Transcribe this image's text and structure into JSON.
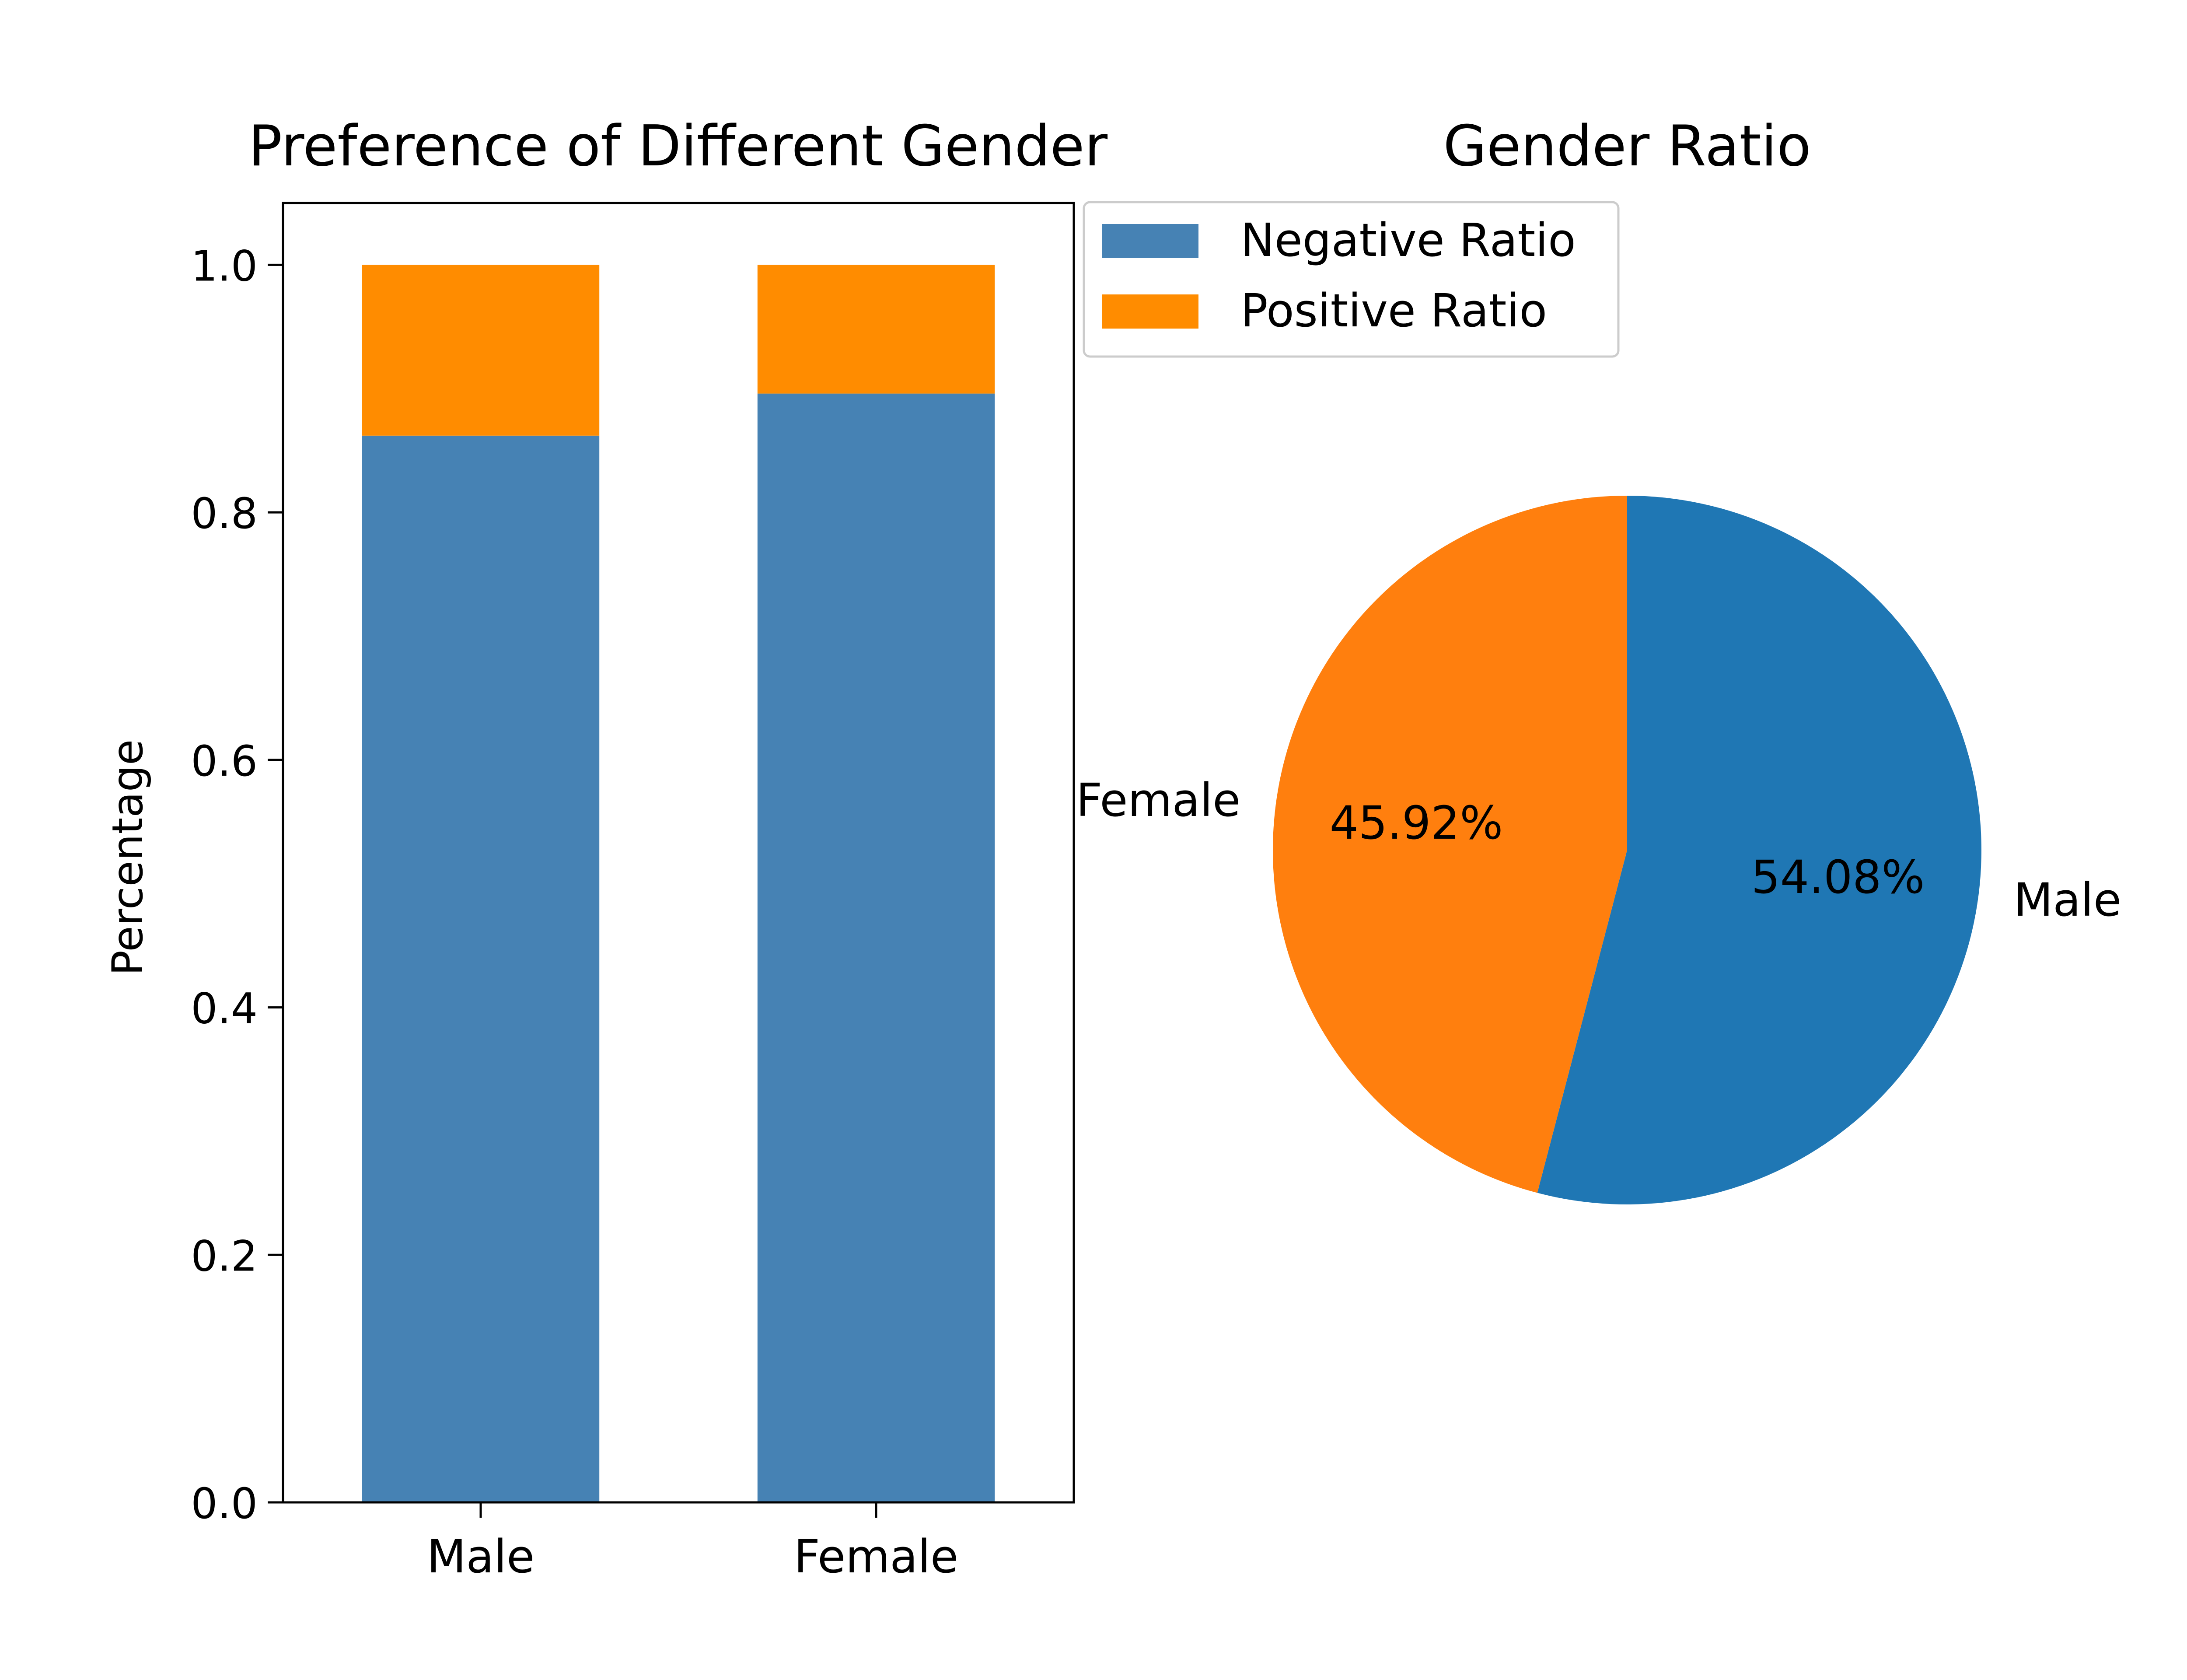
{
  "chart_data": [
    {
      "type": "bar",
      "stacked": true,
      "title": "Preference of Different Gender",
      "xlabel": "",
      "ylabel": "Percentage",
      "categories": [
        "Male",
        "Female"
      ],
      "series": [
        {
          "name": "Negative Ratio",
          "values": [
            0.862,
            0.896
          ],
          "color": "#4682b4"
        },
        {
          "name": "Positive Ratio",
          "values": [
            0.138,
            0.104
          ],
          "color": "#ff8c00"
        }
      ],
      "ylim": [
        0.0,
        1.05
      ],
      "yticks": [
        0.0,
        0.2,
        0.4,
        0.6,
        0.8,
        1.0
      ],
      "ytick_labels": [
        "0.0",
        "0.2",
        "0.4",
        "0.6",
        "0.8",
        "1.0"
      ],
      "grid": false,
      "legend": "outside upper right"
    },
    {
      "type": "pie",
      "title": "Gender Ratio",
      "labels": [
        "Male",
        "Female"
      ],
      "values": [
        54.08,
        45.92
      ],
      "value_labels": [
        "54.08%",
        "45.92%"
      ],
      "colors": [
        "#1f77b4",
        "#ff7f0e"
      ],
      "start_angle_deg": 90,
      "direction": "clockwise"
    }
  ]
}
